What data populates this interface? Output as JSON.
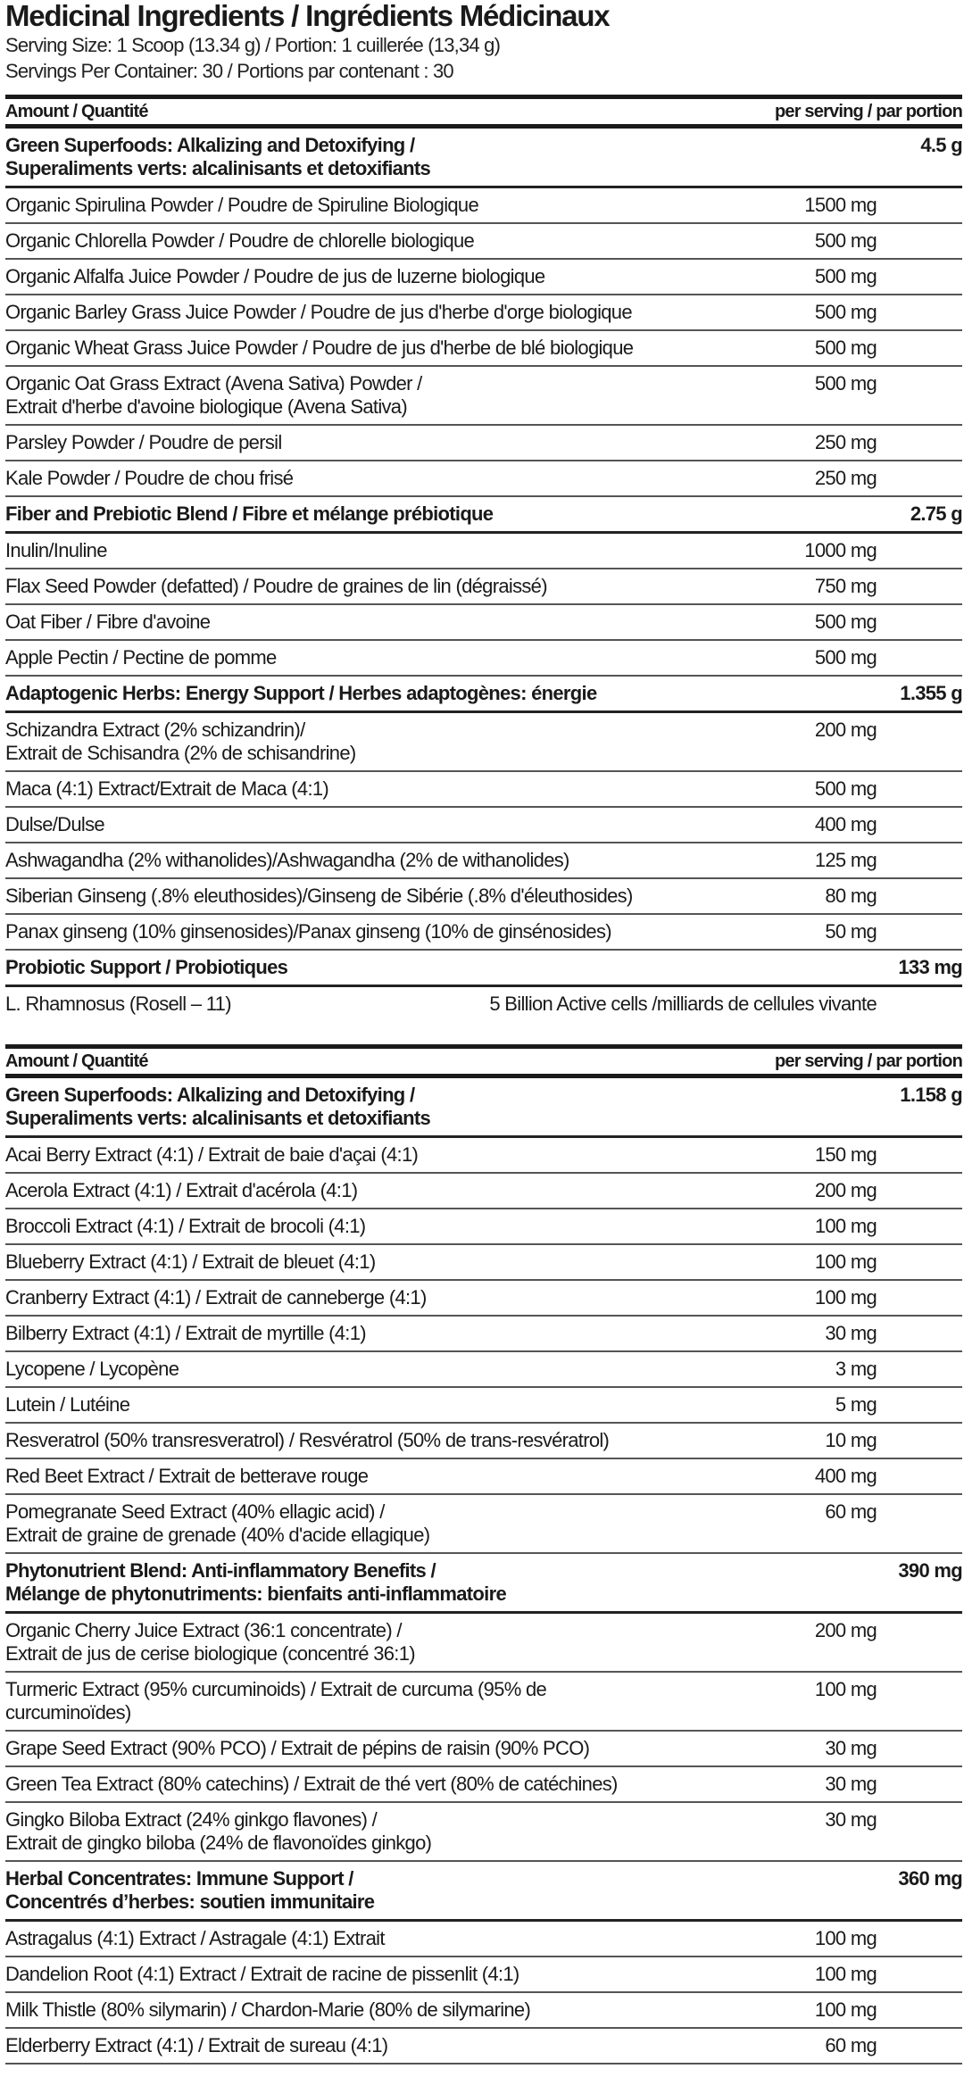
{
  "title": "Medicinal Ingredients / Ingrédients Médicinaux",
  "serving_size": "Serving Size: 1 Scoop (13.34 g) / Portion: 1 cuillerée (13,34 g)",
  "servings_per_container": "Servings Per Container: 30 / Portions par contenant : 30",
  "tables": [
    {
      "header_left": "Amount / Quantité",
      "header_right": "per serving / par portion",
      "groups": [
        {
          "name": [
            "Green Superfoods: Alkalizing and Detoxifying /",
            "Superaliments verts: alcalinisants et detoxifiants"
          ],
          "amount": "4.5 g",
          "items": [
            {
              "name": [
                "Organic Spirulina Powder / Poudre de Spiruline Biologique"
              ],
              "amount": "1500 mg"
            },
            {
              "name": [
                "Organic Chlorella Powder / Poudre de chlorelle biologique"
              ],
              "amount": "500 mg"
            },
            {
              "name": [
                "Organic Alfalfa Juice Powder / Poudre de jus de luzerne biologique"
              ],
              "amount": "500 mg"
            },
            {
              "name": [
                "Organic Barley Grass Juice Powder / Poudre de jus d'herbe d'orge biologique"
              ],
              "amount": "500 mg"
            },
            {
              "name": [
                "Organic Wheat Grass Juice Powder / Poudre de jus d'herbe de blé biologique"
              ],
              "amount": "500 mg"
            },
            {
              "name": [
                "Organic Oat Grass Extract (Avena Sativa) Powder /",
                "Extrait d'herbe d'avoine biologique (Avena Sativa)"
              ],
              "amount": "500 mg"
            },
            {
              "name": [
                "Parsley Powder / Poudre de persil"
              ],
              "amount": "250 mg"
            },
            {
              "name": [
                "Kale Powder / Poudre de chou frisé"
              ],
              "amount": "250 mg"
            }
          ]
        },
        {
          "name": [
            "Fiber and Prebiotic Blend / Fibre et mélange prébiotique"
          ],
          "amount": "2.75 g",
          "items": [
            {
              "name": [
                "Inulin/Inuline"
              ],
              "amount": "1000 mg"
            },
            {
              "name": [
                "Flax Seed Powder (defatted) / Poudre de graines de lin (dégraissé)"
              ],
              "amount": "750 mg"
            },
            {
              "name": [
                "Oat Fiber / Fibre d'avoine"
              ],
              "amount": "500 mg"
            },
            {
              "name": [
                "Apple Pectin / Pectine de pomme"
              ],
              "amount": "500 mg"
            }
          ]
        },
        {
          "name": [
            "Adaptogenic Herbs: Energy Support / Herbes adaptogènes: énergie"
          ],
          "amount": "1.355 g",
          "items": [
            {
              "name": [
                "Schizandra Extract (2% schizandrin)/",
                "Extrait de Schisandra (2% de schisandrine)"
              ],
              "amount": "200 mg"
            },
            {
              "name": [
                "Maca (4:1) Extract/Extrait de Maca (4:1)"
              ],
              "amount": "500 mg"
            },
            {
              "name": [
                "Dulse/Dulse"
              ],
              "amount": "400 mg"
            },
            {
              "name": [
                "Ashwagandha (2% withanolides)/Ashwagandha (2% de withanolides)"
              ],
              "amount": "125 mg"
            },
            {
              "name": [
                "Siberian Ginseng (.8% eleuthosides)/Ginseng de Sibérie (.8% d'éleuthosides)"
              ],
              "amount": "80 mg"
            },
            {
              "name": [
                "Panax ginseng (10% ginsenosides)/Panax ginseng (10% de ginsénosides)"
              ],
              "amount": "50 mg"
            }
          ]
        },
        {
          "name": [
            "Probiotic Support / Probiotiques"
          ],
          "amount": "133 mg",
          "items": [
            {
              "name": [
                "L. Rhamnosus (Rosell – 11)"
              ],
              "amount": "5 Billion Active cells /milliards de cellules vivante",
              "wide": true
            }
          ]
        }
      ]
    },
    {
      "header_left": "Amount / Quantité",
      "header_right": "per serving / par portion",
      "groups": [
        {
          "name": [
            "Green Superfoods: Alkalizing and Detoxifying /",
            "Superaliments verts: alcalinisants et detoxifiants"
          ],
          "amount": "1.158 g",
          "items": [
            {
              "name": [
                "Acai Berry Extract (4:1) / Extrait de baie d'açai (4:1)"
              ],
              "amount": "150 mg"
            },
            {
              "name": [
                "Acerola Extract (4:1) / Extrait d'acérola (4:1)"
              ],
              "amount": "200 mg"
            },
            {
              "name": [
                "Broccoli Extract (4:1) / Extrait de brocoli (4:1)"
              ],
              "amount": "100 mg"
            },
            {
              "name": [
                "Blueberry Extract (4:1) / Extrait de bleuet (4:1)"
              ],
              "amount": "100 mg"
            },
            {
              "name": [
                "Cranberry Extract (4:1) / Extrait de canneberge (4:1)"
              ],
              "amount": "100 mg"
            },
            {
              "name": [
                "Bilberry Extract (4:1) / Extrait de myrtille (4:1)"
              ],
              "amount": "30 mg"
            },
            {
              "name": [
                "Lycopene / Lycopène"
              ],
              "amount": "3 mg"
            },
            {
              "name": [
                "Lutein / Lutéine"
              ],
              "amount": "5 mg"
            },
            {
              "name": [
                "Resveratrol (50% transresveratrol) / Resvératrol (50% de trans-resvératrol)"
              ],
              "amount": "10 mg"
            },
            {
              "name": [
                "Red Beet Extract / Extrait de betterave rouge"
              ],
              "amount": "400 mg"
            },
            {
              "name": [
                "Pomegranate Seed Extract (40% ellagic acid) /",
                "Extrait de graine de grenade (40% d'acide ellagique)"
              ],
              "amount": "60 mg"
            }
          ]
        },
        {
          "name": [
            "Phytonutrient Blend: Anti-inflammatory Benefits /",
            "Mélange de phytonutriments: bienfaits anti-inflammatoire"
          ],
          "amount": "390 mg",
          "items": [
            {
              "name": [
                "Organic Cherry Juice Extract (36:1 concentrate) /",
                "Extrait de jus de cerise biologique (concentré 36:1)"
              ],
              "amount": "200 mg"
            },
            {
              "name": [
                "Turmeric Extract (95% curcuminoids) / Extrait de curcuma (95% de curcuminoïdes)"
              ],
              "amount": "100 mg"
            },
            {
              "name": [
                "Grape Seed Extract (90% PCO) / Extrait de pépins de raisin (90% PCO)"
              ],
              "amount": "30 mg"
            },
            {
              "name": [
                "Green Tea Extract (80% catechins) / Extrait de thé vert (80% de catéchines)"
              ],
              "amount": "30 mg"
            },
            {
              "name": [
                "Gingko Biloba Extract (24% ginkgo flavones) /",
                "Extrait de gingko biloba (24% de flavonoïdes ginkgo)"
              ],
              "amount": "30 mg"
            }
          ]
        },
        {
          "name": [
            "Herbal Concentrates: Immune Support /",
            "Concentrés d’herbes: soutien immunitaire"
          ],
          "amount": "360 mg",
          "items": [
            {
              "name": [
                "Astragalus (4:1) Extract / Astragale (4:1) Extrait"
              ],
              "amount": "100 mg"
            },
            {
              "name": [
                "Dandelion Root (4:1) Extract / Extrait de racine de pissenlit (4:1)"
              ],
              "amount": "100 mg"
            },
            {
              "name": [
                "Milk Thistle (80% silymarin) / Chardon-Marie (80% de silymarine)"
              ],
              "amount": "100 mg"
            },
            {
              "name": [
                "Elderberry Extract (4:1) / Extrait de sureau (4:1)"
              ],
              "amount": "60 mg"
            }
          ]
        }
      ]
    }
  ]
}
